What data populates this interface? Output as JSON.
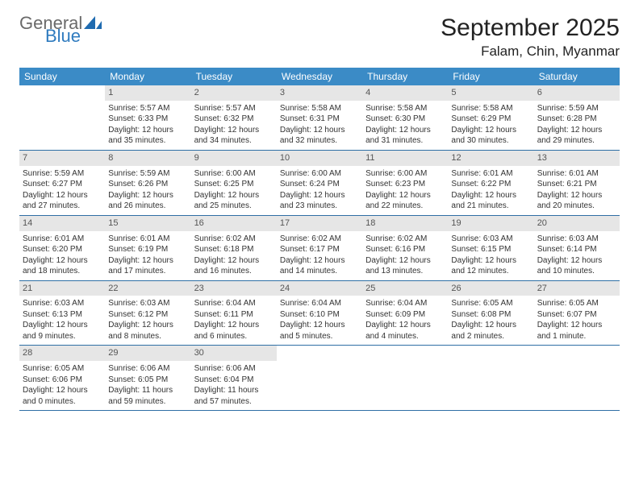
{
  "brand": {
    "word1": "General",
    "word2": "Blue",
    "color_gray": "#6a6a6a",
    "color_blue": "#2f7bbf"
  },
  "title": "September 2025",
  "location": "Falam, Chin, Myanmar",
  "header_bg": "#3b8bc6",
  "daynum_bg": "#e6e6e6",
  "week_border": "#2f6fa5",
  "days_of_week": [
    "Sunday",
    "Monday",
    "Tuesday",
    "Wednesday",
    "Thursday",
    "Friday",
    "Saturday"
  ],
  "weeks": [
    [
      {
        "n": "",
        "sr": "",
        "ss": "",
        "dl": ""
      },
      {
        "n": "1",
        "sr": "Sunrise: 5:57 AM",
        "ss": "Sunset: 6:33 PM",
        "dl": "Daylight: 12 hours and 35 minutes."
      },
      {
        "n": "2",
        "sr": "Sunrise: 5:57 AM",
        "ss": "Sunset: 6:32 PM",
        "dl": "Daylight: 12 hours and 34 minutes."
      },
      {
        "n": "3",
        "sr": "Sunrise: 5:58 AM",
        "ss": "Sunset: 6:31 PM",
        "dl": "Daylight: 12 hours and 32 minutes."
      },
      {
        "n": "4",
        "sr": "Sunrise: 5:58 AM",
        "ss": "Sunset: 6:30 PM",
        "dl": "Daylight: 12 hours and 31 minutes."
      },
      {
        "n": "5",
        "sr": "Sunrise: 5:58 AM",
        "ss": "Sunset: 6:29 PM",
        "dl": "Daylight: 12 hours and 30 minutes."
      },
      {
        "n": "6",
        "sr": "Sunrise: 5:59 AM",
        "ss": "Sunset: 6:28 PM",
        "dl": "Daylight: 12 hours and 29 minutes."
      }
    ],
    [
      {
        "n": "7",
        "sr": "Sunrise: 5:59 AM",
        "ss": "Sunset: 6:27 PM",
        "dl": "Daylight: 12 hours and 27 minutes."
      },
      {
        "n": "8",
        "sr": "Sunrise: 5:59 AM",
        "ss": "Sunset: 6:26 PM",
        "dl": "Daylight: 12 hours and 26 minutes."
      },
      {
        "n": "9",
        "sr": "Sunrise: 6:00 AM",
        "ss": "Sunset: 6:25 PM",
        "dl": "Daylight: 12 hours and 25 minutes."
      },
      {
        "n": "10",
        "sr": "Sunrise: 6:00 AM",
        "ss": "Sunset: 6:24 PM",
        "dl": "Daylight: 12 hours and 23 minutes."
      },
      {
        "n": "11",
        "sr": "Sunrise: 6:00 AM",
        "ss": "Sunset: 6:23 PM",
        "dl": "Daylight: 12 hours and 22 minutes."
      },
      {
        "n": "12",
        "sr": "Sunrise: 6:01 AM",
        "ss": "Sunset: 6:22 PM",
        "dl": "Daylight: 12 hours and 21 minutes."
      },
      {
        "n": "13",
        "sr": "Sunrise: 6:01 AM",
        "ss": "Sunset: 6:21 PM",
        "dl": "Daylight: 12 hours and 20 minutes."
      }
    ],
    [
      {
        "n": "14",
        "sr": "Sunrise: 6:01 AM",
        "ss": "Sunset: 6:20 PM",
        "dl": "Daylight: 12 hours and 18 minutes."
      },
      {
        "n": "15",
        "sr": "Sunrise: 6:01 AM",
        "ss": "Sunset: 6:19 PM",
        "dl": "Daylight: 12 hours and 17 minutes."
      },
      {
        "n": "16",
        "sr": "Sunrise: 6:02 AM",
        "ss": "Sunset: 6:18 PM",
        "dl": "Daylight: 12 hours and 16 minutes."
      },
      {
        "n": "17",
        "sr": "Sunrise: 6:02 AM",
        "ss": "Sunset: 6:17 PM",
        "dl": "Daylight: 12 hours and 14 minutes."
      },
      {
        "n": "18",
        "sr": "Sunrise: 6:02 AM",
        "ss": "Sunset: 6:16 PM",
        "dl": "Daylight: 12 hours and 13 minutes."
      },
      {
        "n": "19",
        "sr": "Sunrise: 6:03 AM",
        "ss": "Sunset: 6:15 PM",
        "dl": "Daylight: 12 hours and 12 minutes."
      },
      {
        "n": "20",
        "sr": "Sunrise: 6:03 AM",
        "ss": "Sunset: 6:14 PM",
        "dl": "Daylight: 12 hours and 10 minutes."
      }
    ],
    [
      {
        "n": "21",
        "sr": "Sunrise: 6:03 AM",
        "ss": "Sunset: 6:13 PM",
        "dl": "Daylight: 12 hours and 9 minutes."
      },
      {
        "n": "22",
        "sr": "Sunrise: 6:03 AM",
        "ss": "Sunset: 6:12 PM",
        "dl": "Daylight: 12 hours and 8 minutes."
      },
      {
        "n": "23",
        "sr": "Sunrise: 6:04 AM",
        "ss": "Sunset: 6:11 PM",
        "dl": "Daylight: 12 hours and 6 minutes."
      },
      {
        "n": "24",
        "sr": "Sunrise: 6:04 AM",
        "ss": "Sunset: 6:10 PM",
        "dl": "Daylight: 12 hours and 5 minutes."
      },
      {
        "n": "25",
        "sr": "Sunrise: 6:04 AM",
        "ss": "Sunset: 6:09 PM",
        "dl": "Daylight: 12 hours and 4 minutes."
      },
      {
        "n": "26",
        "sr": "Sunrise: 6:05 AM",
        "ss": "Sunset: 6:08 PM",
        "dl": "Daylight: 12 hours and 2 minutes."
      },
      {
        "n": "27",
        "sr": "Sunrise: 6:05 AM",
        "ss": "Sunset: 6:07 PM",
        "dl": "Daylight: 12 hours and 1 minute."
      }
    ],
    [
      {
        "n": "28",
        "sr": "Sunrise: 6:05 AM",
        "ss": "Sunset: 6:06 PM",
        "dl": "Daylight: 12 hours and 0 minutes."
      },
      {
        "n": "29",
        "sr": "Sunrise: 6:06 AM",
        "ss": "Sunset: 6:05 PM",
        "dl": "Daylight: 11 hours and 59 minutes."
      },
      {
        "n": "30",
        "sr": "Sunrise: 6:06 AM",
        "ss": "Sunset: 6:04 PM",
        "dl": "Daylight: 11 hours and 57 minutes."
      },
      {
        "n": "",
        "sr": "",
        "ss": "",
        "dl": ""
      },
      {
        "n": "",
        "sr": "",
        "ss": "",
        "dl": ""
      },
      {
        "n": "",
        "sr": "",
        "ss": "",
        "dl": ""
      },
      {
        "n": "",
        "sr": "",
        "ss": "",
        "dl": ""
      }
    ]
  ]
}
